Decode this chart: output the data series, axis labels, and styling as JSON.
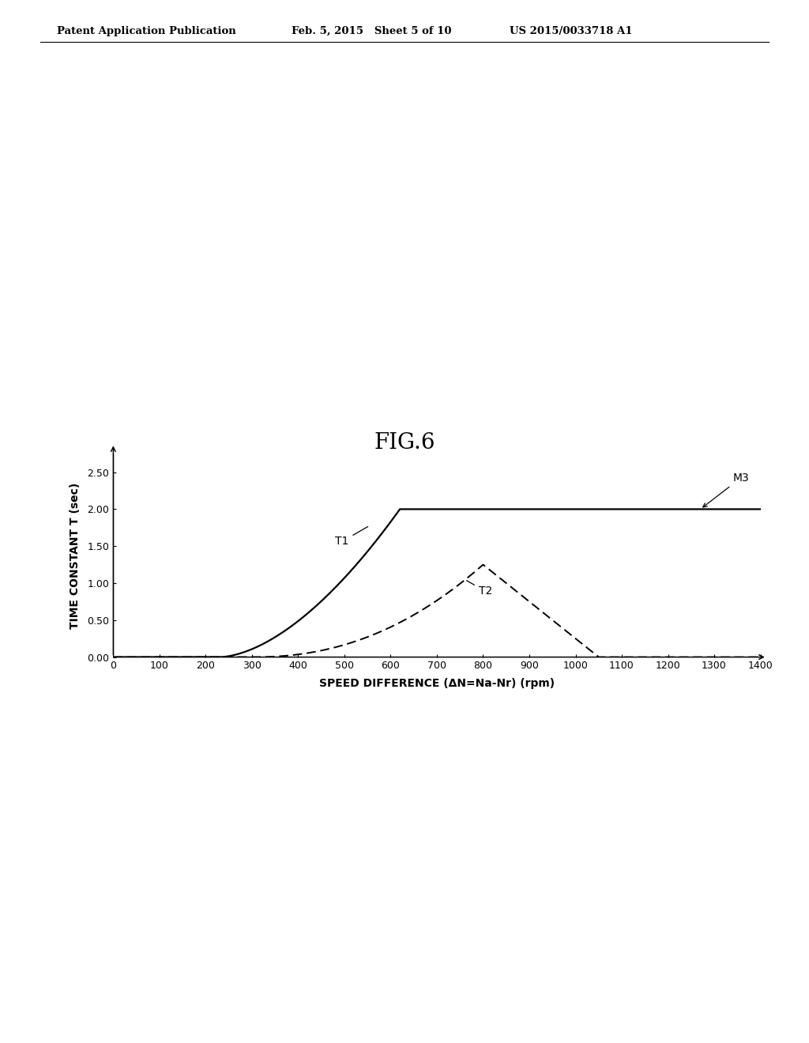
{
  "title": "FIG.6",
  "header_left": "Patent Application Publication",
  "header_mid": "Feb. 5, 2015   Sheet 5 of 10",
  "header_right": "US 2015/0033718 A1",
  "xlabel": "SPEED DIFFERENCE (ΔN=Na-Nr) (rpm)",
  "ylabel": "TIME CONSTANT T (sec)",
  "xlim": [
    0,
    1400
  ],
  "ylim": [
    0,
    2.75
  ],
  "xticks": [
    0,
    100,
    200,
    300,
    400,
    500,
    600,
    700,
    800,
    900,
    1000,
    1100,
    1200,
    1300,
    1400
  ],
  "yticks": [
    0.0,
    0.5,
    1.0,
    1.5,
    2.0,
    2.5
  ],
  "T1_label": "T1",
  "T2_label": "T2",
  "M3_label": "M3",
  "background_color": "#ffffff",
  "line_color": "#000000",
  "title_fontsize": 20,
  "axis_label_fontsize": 10,
  "tick_fontsize": 9,
  "header_fontsize": 9.5,
  "annotation_fontsize": 10
}
